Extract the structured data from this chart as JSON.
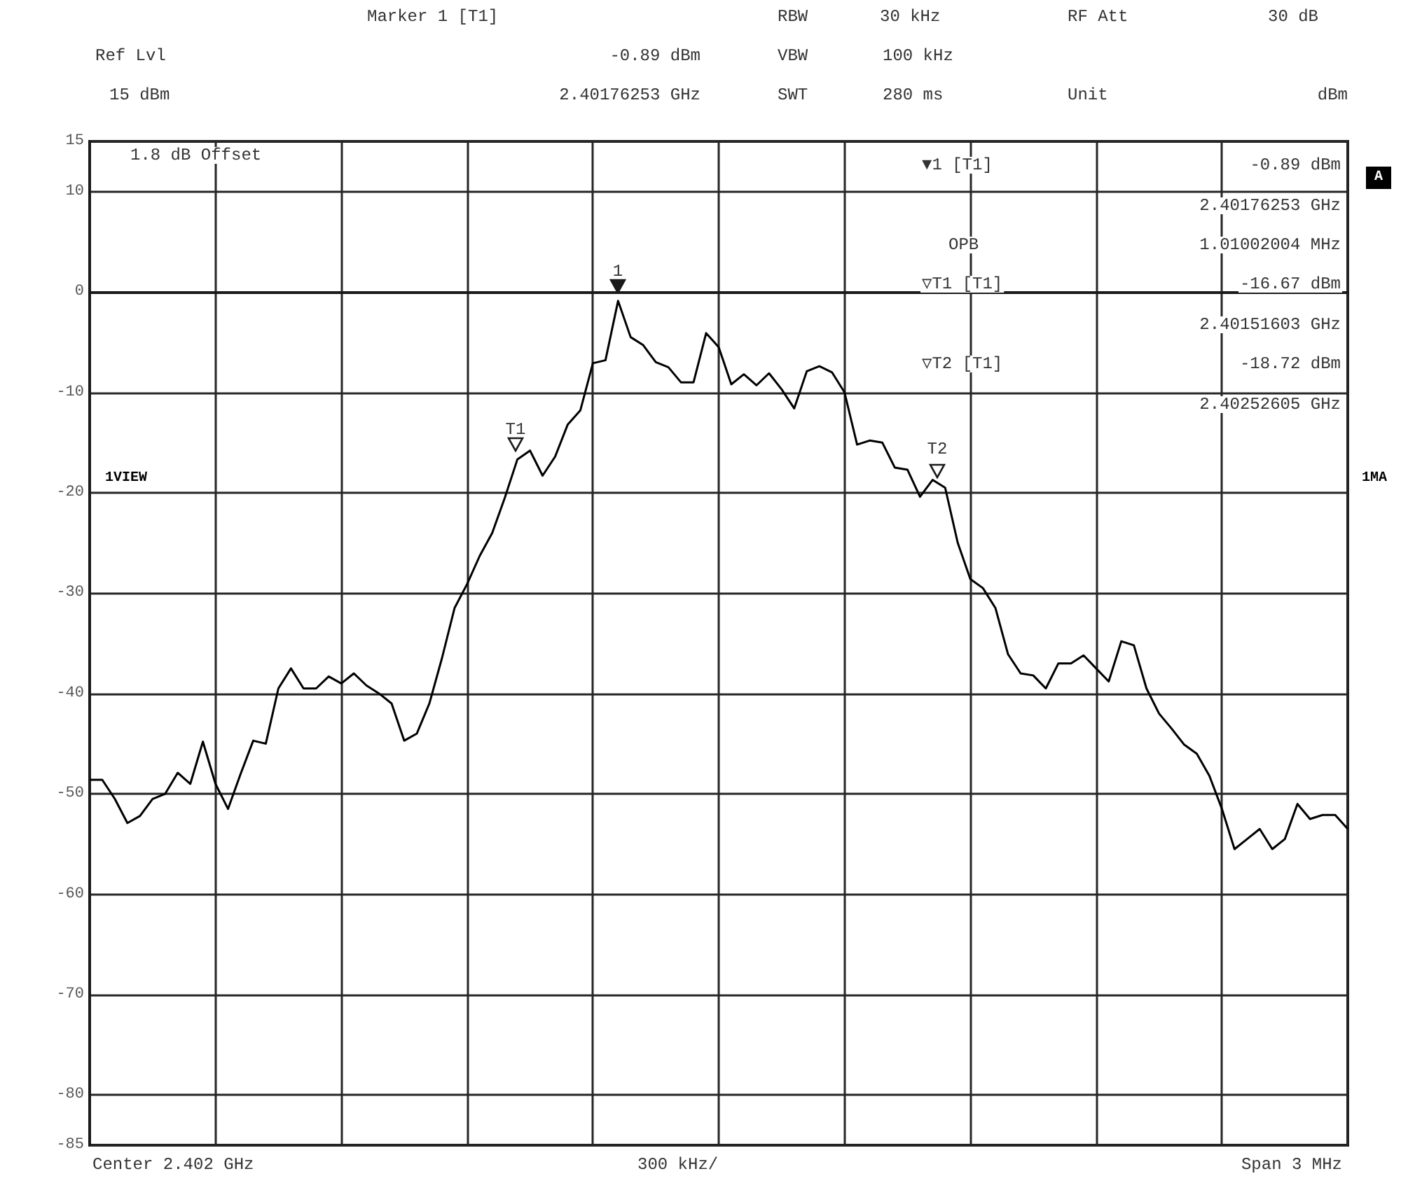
{
  "chart_data": {
    "type": "line",
    "title": "Marker 1 [T1]",
    "categories": [
      null,
      null,
      null,
      null,
      null,
      null,
      null,
      null,
      null,
      null,
      null,
      null,
      null,
      null,
      null,
      null,
      null,
      null,
      null,
      null,
      null,
      null,
      null,
      null,
      null,
      null,
      null,
      null,
      null,
      null,
      null,
      null,
      null,
      null,
      null,
      null,
      null,
      null,
      null,
      null,
      null,
      null,
      null,
      null,
      null,
      null,
      null,
      null,
      null,
      null,
      null,
      null,
      null,
      null,
      null,
      null,
      null,
      null,
      null,
      null,
      null,
      null,
      null,
      null,
      null,
      null,
      null,
      null,
      null,
      null,
      null,
      null,
      null,
      null,
      null,
      null,
      null,
      null,
      null,
      null,
      null,
      null,
      null,
      null,
      null,
      null,
      null,
      null,
      null,
      null,
      null,
      null,
      null,
      null,
      null,
      null,
      null,
      null,
      null,
      null,
      null
    ],
    "series": [
      {
        "color": "#000000",
        "values": [
          -48.6,
          -48.6,
          -50.5,
          -52.9,
          -52.2,
          -50.5,
          -50.0,
          -47.9,
          -49.0,
          -44.8,
          -49.0,
          -51.5,
          -48.0,
          -44.7,
          -45.0,
          -39.5,
          -37.5,
          -39.5,
          -39.5,
          -38.3,
          -39.0,
          -38.0,
          -39.2,
          -40.0,
          -41.0,
          -44.7,
          -44.0,
          -41.0,
          -36.5,
          -31.5,
          -29.1,
          -26.3,
          -24.0,
          -20.5,
          -16.67,
          -15.8,
          -18.3,
          -16.4,
          -13.2,
          -11.8,
          -7.1,
          -6.8,
          -0.89,
          -4.5,
          -5.3,
          -7.0,
          -7.5,
          -9.0,
          -9.0,
          -4.1,
          -5.5,
          -9.2,
          -8.2,
          -9.3,
          -8.1,
          -9.7,
          -11.6,
          -7.9,
          -7.4,
          -8.0,
          -10.0,
          -15.2,
          -14.8,
          -15.0,
          -17.5,
          -17.7,
          -20.4,
          -18.72,
          -19.5,
          -25.0,
          -28.6,
          -29.5,
          -31.5,
          -36.1,
          -38.0,
          -38.2,
          -39.5,
          -37.0,
          -37.0,
          -36.2,
          -37.5,
          -38.8,
          -34.8,
          -35.2,
          -39.5,
          -42.0,
          -43.5,
          -45.1,
          -46.0,
          -48.2,
          -51.5,
          -55.5,
          -54.5,
          -53.5,
          -55.5,
          -54.5,
          -51.0,
          -52.5,
          -52.1,
          -52.1,
          -53.5
        ]
      }
    ],
    "marker": "none",
    "line_style": "solid",
    "ylim": [
      -85,
      15
    ],
    "yticks": [
      15,
      10,
      0,
      -10,
      -20,
      -30,
      -40,
      -50,
      -60,
      -70,
      -80,
      -85
    ],
    "tick_labels": "y",
    "grid": true,
    "annotations": [
      "1",
      "T1",
      "T2",
      "RBW",
      "30 kHz",
      "RF Att",
      "30 dB",
      "Ref Lvl",
      "-0.89 dBm",
      "VBW",
      "100 kHz",
      "15 dBm",
      "2.40176253 GHz",
      "SWT",
      "280 ms",
      "Unit",
      "dBm",
      "1.8 dB Offset",
      "1VIEW",
      "A",
      "1MA",
      "▼1 [T1]",
      "-0.89 dBm",
      "2.40176253 GHz",
      "OPB",
      "1.01002004 MHz",
      "▽T1 [T1]",
      "-16.67 dBm",
      "2.40151603 GHz",
      "▽T2 [T1]",
      "-18.72 dBm",
      "2.40252605 GHz",
      "Center 2.402 GHz",
      "300 kHz/",
      "Span 3 MHz"
    ]
  }
}
